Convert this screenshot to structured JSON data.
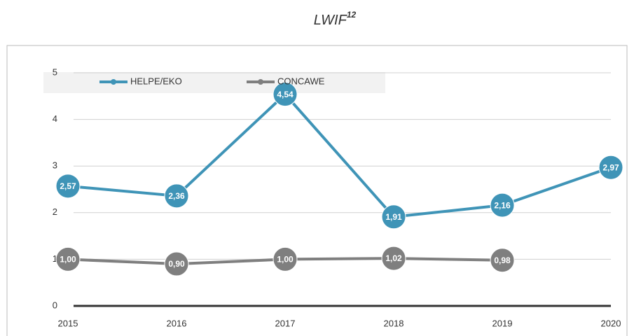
{
  "chart_data": {
    "type": "line",
    "title": "LWIF",
    "title_superscript": "12",
    "categories": [
      "2015",
      "2016",
      "2017",
      "2018",
      "2019",
      "2020"
    ],
    "series": [
      {
        "name": "HELPE/EKO",
        "color": "#3f94b7",
        "values": [
          2.57,
          2.36,
          4.54,
          1.91,
          2.16,
          2.97
        ],
        "value_labels": [
          "2,57",
          "2,36",
          "4,54",
          "1,91",
          "2,16",
          "2,97"
        ]
      },
      {
        "name": "CONCAWE",
        "color": "#7f7f7f",
        "values": [
          1.0,
          0.9,
          1.0,
          1.02,
          0.98,
          null
        ],
        "value_labels": [
          "1,00",
          "0,90",
          "1,00",
          "1,02",
          "0,98",
          null
        ]
      }
    ],
    "ylim": [
      0,
      5
    ],
    "yticks": [
      0,
      1,
      2,
      3,
      4,
      5
    ],
    "grid": true,
    "legend": "top-left"
  }
}
